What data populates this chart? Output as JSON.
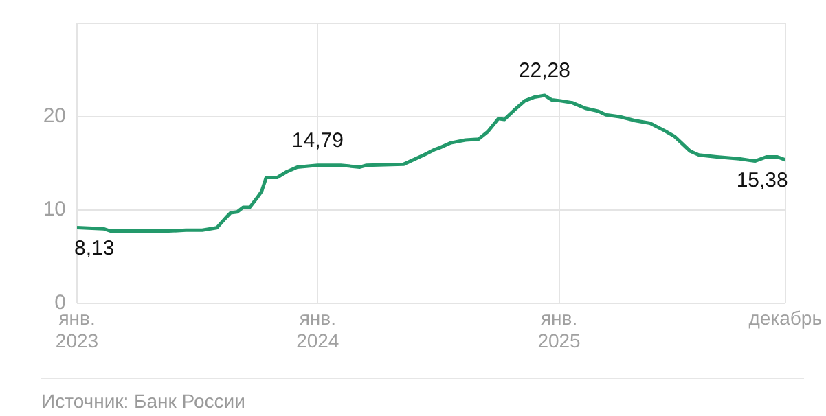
{
  "chart_data": {
    "type": "line",
    "color": "#23996b",
    "grid": true,
    "marker": "none",
    "line_style": "solid",
    "xlim": [
      "2023-01-01",
      "2025-12-10"
    ],
    "xticks": [
      {
        "value": "2023-01-01",
        "label": "янв.\n2023"
      },
      {
        "value": "2024-01-01",
        "label": "янв.\n2024"
      },
      {
        "value": "2025-01-01",
        "label": "янв.\n2025"
      },
      {
        "value": "2025-12-10",
        "label": "декабрь"
      }
    ],
    "ylim": [
      0,
      30
    ],
    "yticks": [
      0,
      10,
      20,
      {
        "value": 30,
        "label": null
      }
    ],
    "x": [
      "2023-01-01",
      "2023-02-10",
      "2023-02-21",
      "2023-05-20",
      "2023-06-15",
      "2023-07-10",
      "2023-08-01",
      "2023-08-15",
      "2023-08-22",
      "2023-09-01",
      "2023-09-10",
      "2023-09-20",
      "2023-10-01",
      "2023-10-08",
      "2023-10-15",
      "2023-11-01",
      "2023-11-15",
      "2023-12-01",
      "2024-01-01",
      "2024-02-05",
      "2024-03-05",
      "2024-03-15",
      "2024-05-10",
      "2024-06-10",
      "2024-06-27",
      "2024-07-05",
      "2024-07-21",
      "2024-08-12",
      "2024-09-01",
      "2024-09-15",
      "2024-10-01",
      "2024-10-10",
      "2024-10-25",
      "2024-11-10",
      "2024-11-25",
      "2024-12-10",
      "2024-12-21",
      "2025-01-03",
      "2025-01-21",
      "2025-02-10",
      "2025-03-01",
      "2025-03-13",
      "2025-04-03",
      "2025-04-25",
      "2025-05-19",
      "2025-06-10",
      "2025-06-25",
      "2025-07-19",
      "2025-08-01",
      "2025-08-28",
      "2025-10-01",
      "2025-10-25",
      "2025-11-12",
      "2025-11-28",
      "2025-12-10"
    ],
    "values": [
      8.13,
      8.0,
      7.75,
      7.75,
      7.85,
      7.85,
      8.1,
      9.2,
      9.7,
      9.8,
      10.3,
      10.3,
      11.3,
      12.0,
      13.5,
      13.5,
      14.1,
      14.6,
      14.79,
      14.8,
      14.6,
      14.8,
      14.9,
      15.9,
      16.5,
      16.7,
      17.2,
      17.5,
      17.6,
      18.4,
      19.8,
      19.7,
      20.7,
      21.7,
      22.1,
      22.28,
      21.8,
      21.7,
      21.5,
      20.9,
      20.6,
      20.2,
      20.0,
      19.6,
      19.3,
      18.5,
      17.9,
      16.3,
      15.9,
      15.7,
      15.5,
      15.25,
      15.7,
      15.7,
      15.38
    ],
    "annotations": [
      {
        "text": "8,13",
        "x": "2023-01-01",
        "y": 8.13
      },
      {
        "text": "14,79",
        "x": "2024-01-01",
        "y": 14.79
      },
      {
        "text": "22,28",
        "x": "2024-12-10",
        "y": 22.28
      },
      {
        "text": "15,38",
        "x": "2025-12-10",
        "y": 15.38
      },
      "Источник: Банк России"
    ]
  }
}
